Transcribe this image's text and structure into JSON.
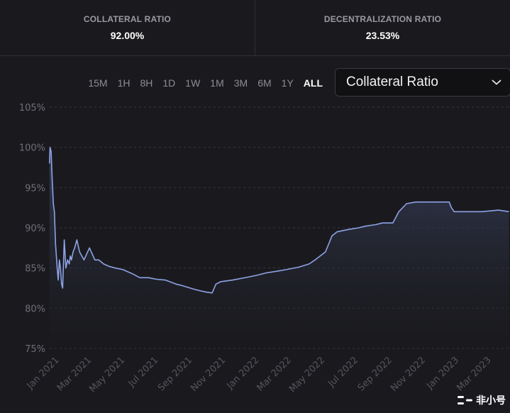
{
  "stats": {
    "collateral_label": "COLLATERAL RATIO",
    "collateral_value": "92.00%",
    "decentral_label": "DECENTRALIZATION RATIO",
    "decentral_value": "23.53%"
  },
  "timeframes": [
    "15M",
    "1H",
    "8H",
    "1D",
    "1W",
    "1M",
    "3M",
    "6M",
    "1Y",
    "ALL"
  ],
  "active_timeframe": "ALL",
  "metric_select": {
    "value": "Collateral Ratio",
    "icon": "chevron-down-icon"
  },
  "watermark": "非小号",
  "colors": {
    "line": "#8ea3e6",
    "fill_top": "#3a4260",
    "background": "#1a1a1e"
  },
  "chart_data": {
    "type": "area",
    "title": "",
    "ylim": [
      75,
      105
    ],
    "yticks": [
      "75%",
      "80%",
      "85%",
      "90%",
      "95%",
      "100%",
      "105%"
    ],
    "xticks": [
      "Jan 2021",
      "Mar 2021",
      "May 2021",
      "Jul 2021",
      "Sep 2021",
      "Nov 2021",
      "Jan 2022",
      "Mar 2022",
      "May 2022",
      "Jul 2022",
      "Sep 2022",
      "Nov 2022",
      "Jan 2023",
      "Mar 2023"
    ],
    "grid": true,
    "series": [
      {
        "x": [
          "2021-01-01",
          "2021-01-02",
          "2021-01-04",
          "2021-01-06",
          "2021-01-08",
          "2021-01-10",
          "2021-01-12",
          "2021-01-15",
          "2021-01-17",
          "2021-01-19",
          "2021-01-21",
          "2021-01-23",
          "2021-01-25",
          "2021-01-28",
          "2021-01-31",
          "2021-02-03",
          "2021-02-06",
          "2021-02-08",
          "2021-02-10",
          "2021-02-13",
          "2021-02-16",
          "2021-02-20",
          "2021-02-25",
          "2021-03-05",
          "2021-03-15",
          "2021-03-25",
          "2021-04-01",
          "2021-04-10",
          "2021-04-20",
          "2021-05-01",
          "2021-05-15",
          "2021-06-01",
          "2021-06-15",
          "2021-07-01",
          "2021-07-15",
          "2021-08-01",
          "2021-08-20",
          "2021-09-01",
          "2021-09-20",
          "2021-10-01",
          "2021-10-15",
          "2021-10-25",
          "2021-11-01",
          "2021-11-10",
          "2021-12-01",
          "2022-01-01",
          "2022-01-15",
          "2022-02-01",
          "2022-03-01",
          "2022-04-01",
          "2022-04-20",
          "2022-05-01",
          "2022-05-20",
          "2022-06-01",
          "2022-06-10",
          "2022-07-01",
          "2022-07-20",
          "2022-08-01",
          "2022-08-20",
          "2022-09-01",
          "2022-09-20",
          "2022-10-01",
          "2022-10-15",
          "2022-11-01",
          "2022-12-01",
          "2022-12-15",
          "2023-01-01",
          "2023-01-05",
          "2023-01-10",
          "2023-02-01",
          "2023-03-01",
          "2023-04-01",
          "2023-04-20"
        ],
        "values": [
          98,
          100,
          99.5,
          96,
          93,
          92,
          88,
          85,
          83.5,
          86,
          85,
          83,
          82.5,
          88.5,
          85,
          86,
          85.5,
          86.5,
          86,
          87,
          87.5,
          88.5,
          87,
          86,
          87.5,
          86,
          86,
          85.5,
          85.2,
          85,
          84.8,
          84.3,
          83.8,
          83.8,
          83.6,
          83.5,
          83.0,
          82.8,
          82.4,
          82.2,
          82.0,
          81.9,
          83.0,
          83.3,
          83.5,
          83.9,
          84.1,
          84.4,
          84.7,
          85.1,
          85.5,
          86.0,
          87.0,
          89.0,
          89.5,
          89.8,
          90.0,
          90.2,
          90.4,
          90.6,
          90.6,
          92.0,
          93.0,
          93.2,
          93.2,
          93.2,
          93.2,
          92.5,
          92.0,
          92.0,
          92.0,
          92.2,
          92.0
        ]
      }
    ]
  }
}
